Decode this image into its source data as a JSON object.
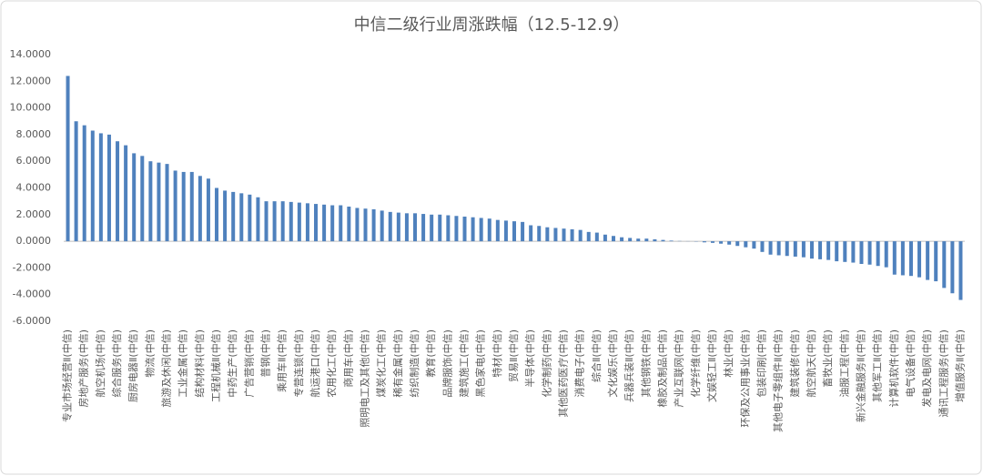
{
  "chart_data": {
    "type": "bar",
    "title": "中信二级行业周涨跌幅（12.5-12.9）",
    "categories": [
      "专业市场经营Ⅱ(中信)",
      null,
      "房地产服务(中信)",
      null,
      "航空机场(中信)",
      null,
      "综合服务(中信)",
      null,
      "厨房电器Ⅱ(中信)",
      null,
      "物流(中信)",
      null,
      "旅游及休闲(中信)",
      null,
      "工业金属(中信)",
      null,
      "结构材料(中信)",
      null,
      "工程机械Ⅱ(中信)",
      null,
      "中药生产(中信)",
      null,
      "广告营销(中信)",
      null,
      "普钢(中信)",
      null,
      "乘用车Ⅱ(中信)",
      null,
      "专营连锁(中信)",
      null,
      "航运港口(中信)",
      null,
      "农用化工(中信)",
      null,
      "商用车(中信)",
      null,
      "照明电工及其他(中信)",
      null,
      "煤炭化工(中信)",
      null,
      "稀有金属(中信)",
      null,
      "纺织制造(中信)",
      null,
      "教育(中信)",
      null,
      "品牌服饰(中信)",
      null,
      "建筑施工(中信)",
      null,
      "黑色家电(中信)",
      null,
      "特材(中信)",
      null,
      "贸易Ⅱ(中信)",
      null,
      "半导体(中信)",
      null,
      "化学制药(中信)",
      null,
      "其他医药医疗(中信)",
      null,
      "消费电子(中信)",
      null,
      "综合Ⅱ(中信)",
      null,
      "文化娱乐(中信)",
      null,
      "兵器兵装Ⅱ(中信)",
      null,
      "其他钢铁(中信)",
      null,
      "橡胶及制品(中信)",
      null,
      "产业互联网(中信)",
      null,
      "化学纤维(中信)",
      null,
      "文娱轻工Ⅱ(中信)",
      null,
      "林业(中信)",
      null,
      "环保及公用事业(中信)",
      null,
      "包装印刷(中信)",
      null,
      "其他电子零组件Ⅱ(中信)",
      null,
      "建筑装修(中信)",
      null,
      "航空航天(中信)",
      null,
      "畜牧业(中信)",
      null,
      "油服工程(中信)",
      null,
      "新兴金融服务Ⅱ(中信)",
      null,
      "其他军工Ⅱ(中信)",
      null,
      "计算机软件(中信)",
      null,
      "电气设备(中信)",
      null,
      "发电及电网(中信)",
      null,
      "通讯工程服务(中信)",
      null,
      "增值服务Ⅱ(中信)"
    ],
    "values": [
      12.4,
      9.0,
      8.7,
      8.3,
      8.1,
      8.0,
      7.5,
      7.2,
      6.6,
      6.4,
      6.0,
      5.9,
      5.8,
      5.3,
      5.2,
      5.2,
      4.9,
      4.7,
      4.0,
      3.8,
      3.7,
      3.6,
      3.5,
      3.3,
      3.0,
      3.0,
      3.0,
      2.95,
      2.9,
      2.85,
      2.8,
      2.75,
      2.7,
      2.7,
      2.6,
      2.5,
      2.45,
      2.4,
      2.3,
      2.2,
      2.15,
      2.1,
      2.1,
      2.05,
      2.0,
      2.0,
      1.95,
      1.9,
      1.85,
      1.8,
      1.75,
      1.7,
      1.6,
      1.55,
      1.5,
      1.45,
      1.2,
      1.15,
      1.05,
      1.0,
      0.95,
      0.9,
      0.85,
      0.7,
      0.65,
      0.5,
      0.4,
      0.3,
      0.25,
      0.2,
      0.2,
      0.15,
      0.1,
      0.05,
      0.02,
      0.01,
      -0.02,
      -0.08,
      -0.12,
      -0.18,
      -0.25,
      -0.35,
      -0.45,
      -0.55,
      -0.8,
      -1.0,
      -1.05,
      -1.1,
      -1.15,
      -1.2,
      -1.3,
      -1.35,
      -1.4,
      -1.5,
      -1.55,
      -1.6,
      -1.7,
      -1.75,
      -1.85,
      -1.95,
      -2.5,
      -2.55,
      -2.6,
      -2.7,
      -2.9,
      -3.0,
      -3.5,
      -3.9,
      -4.4
    ],
    "color": "#4f81bd",
    "ylim": [
      -6,
      14
    ],
    "yticks": [
      {
        "value": -6,
        "label": "-6.0000"
      },
      {
        "value": -4,
        "label": "-4.0000"
      },
      {
        "value": -2,
        "label": "-2.0000"
      },
      {
        "value": 0,
        "label": "0.0000"
      },
      {
        "value": 2,
        "label": "2.0000"
      },
      {
        "value": 4,
        "label": "4.0000"
      },
      {
        "value": 6,
        "label": "6.0000"
      },
      {
        "value": 8,
        "label": "8.0000"
      },
      {
        "value": 10,
        "label": "10.0000"
      },
      {
        "value": 12,
        "label": "12.0000"
      },
      {
        "value": 14,
        "label": "14.0000"
      }
    ],
    "grid": false
  }
}
